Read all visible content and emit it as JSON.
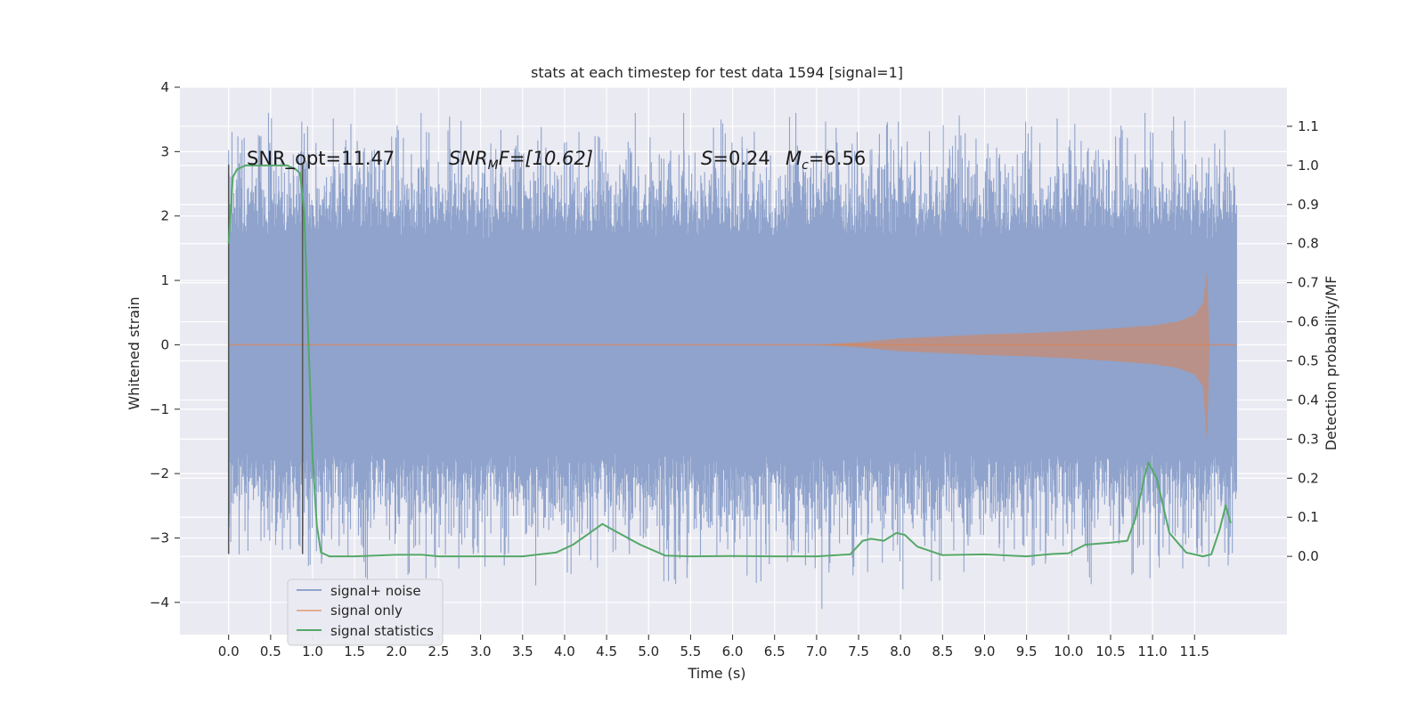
{
  "chart_data": {
    "type": "line",
    "title": "stats at each timestep for test data 1594 [signal=1]",
    "xlabel": "Time (s)",
    "ylabel": "Whitened strain",
    "ylabel_right": "Detection probability/MF",
    "xlim": [
      -0.58,
      12.6
    ],
    "ylim": [
      -4.5,
      4.0
    ],
    "ylim_right": [
      -0.2,
      1.2
    ],
    "x_ticks": [
      "0.0",
      "0.5",
      "1.0",
      "1.5",
      "2.0",
      "2.5",
      "3.0",
      "3.5",
      "4.0",
      "4.5",
      "5.0",
      "5.5",
      "6.0",
      "6.5",
      "7.0",
      "7.5",
      "8.0",
      "8.5",
      "9.0",
      "9.5",
      "10.0",
      "10.5",
      "11.0",
      "11.5"
    ],
    "y_ticks": [
      "4",
      "3",
      "2",
      "1",
      "0",
      "−1",
      "−2",
      "−3",
      "−4"
    ],
    "y_ticks_right": [
      "1.1",
      "1.0",
      "0.9",
      "0.8",
      "0.7",
      "0.6",
      "0.5",
      "0.4",
      "0.3",
      "0.2",
      "0.1",
      "0.0"
    ],
    "grid": true,
    "legend_position": "lower-left",
    "colors": {
      "signal_noise": "#8fa3cc",
      "signal_only": "#dd8452",
      "statistics": "#55a868",
      "background": "#eaeaf2",
      "grid": "#ffffff",
      "marker": "#555555"
    },
    "annotations": {
      "snr_opt": "SNR_opt=11.47",
      "snr_mf_main": "SNR",
      "snr_mf_sub": "M",
      "snr_mf_rest": "F=[10.62]",
      "s_main": "S",
      "s_rest": "=0.24",
      "mc_main": "M",
      "mc_sub": "c",
      "mc_rest": "=6.56"
    },
    "vertical_markers": [
      0.0,
      0.88
    ],
    "series": [
      {
        "name": "signal+ noise",
        "axis": "left",
        "x_range": [
          0.0,
          12.0
        ],
        "envelope_typical": 1.65,
        "spike_extremes": [
          3.6,
          -4.1
        ]
      },
      {
        "name": "signal only",
        "axis": "left",
        "x": [
          0.0,
          7.0,
          7.5,
          8.0,
          8.5,
          9.0,
          9.5,
          10.0,
          10.5,
          11.0,
          11.3,
          11.5,
          11.6,
          11.65,
          11.68
        ],
        "amplitude": [
          0.0,
          0.0,
          0.04,
          0.1,
          0.13,
          0.16,
          0.18,
          0.21,
          0.25,
          0.3,
          0.36,
          0.46,
          0.65,
          1.15,
          0.0
        ]
      },
      {
        "name": "signal statistics",
        "axis": "right",
        "x": [
          0.0,
          0.05,
          0.1,
          0.2,
          0.3,
          0.5,
          0.7,
          0.8,
          0.85,
          0.9,
          0.95,
          1.0,
          1.05,
          1.1,
          1.2,
          1.5,
          2.0,
          2.3,
          2.5,
          3.0,
          3.5,
          3.9,
          4.1,
          4.3,
          4.45,
          4.6,
          4.9,
          5.2,
          5.5,
          6.0,
          6.5,
          7.0,
          7.4,
          7.55,
          7.65,
          7.8,
          7.95,
          8.05,
          8.2,
          8.5,
          9.0,
          9.5,
          9.8,
          10.0,
          10.2,
          10.5,
          10.7,
          10.8,
          10.9,
          10.95,
          11.05,
          11.2,
          11.4,
          11.6,
          11.7,
          11.8,
          11.87,
          11.93
        ],
        "values": [
          0.8,
          0.97,
          0.99,
          1.0,
          1.0,
          1.0,
          1.0,
          0.99,
          0.98,
          0.88,
          0.55,
          0.25,
          0.08,
          0.01,
          0.0,
          0.0,
          0.004,
          0.004,
          0.0,
          0.0,
          0.0,
          0.01,
          0.03,
          0.06,
          0.083,
          0.065,
          0.03,
          0.002,
          0.0,
          0.001,
          0.0,
          0.0,
          0.005,
          0.04,
          0.045,
          0.04,
          0.06,
          0.055,
          0.025,
          0.003,
          0.005,
          0.0,
          0.006,
          0.008,
          0.03,
          0.035,
          0.04,
          0.1,
          0.2,
          0.24,
          0.2,
          0.06,
          0.01,
          0.0,
          0.005,
          0.07,
          0.13,
          0.085
        ]
      }
    ]
  }
}
